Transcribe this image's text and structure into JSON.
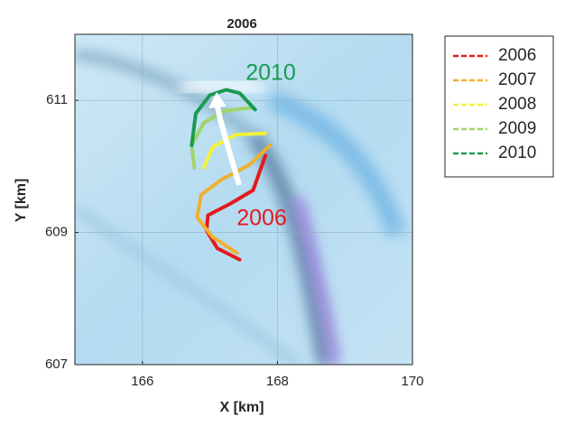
{
  "chart_data": {
    "type": "line",
    "title": "2006",
    "xlabel": "X [km]",
    "ylabel": "Y [km]",
    "xlim": [
      165,
      170
    ],
    "ylim": [
      607,
      612
    ],
    "xticks": [
      166,
      168,
      170
    ],
    "yticks": [
      607,
      609,
      611
    ],
    "grid": true,
    "legend": "outside right",
    "series": [
      {
        "name": "2006",
        "color": "#e41a1c",
        "x": [
          167.44,
          167.11,
          166.95,
          166.97,
          167.31,
          167.64,
          167.82
        ],
        "values": [
          608.59,
          608.76,
          609.03,
          609.26,
          609.44,
          609.64,
          610.16
        ]
      },
      {
        "name": "2007",
        "color": "#f0b030",
        "x": [
          167.4,
          167.04,
          166.81,
          166.87,
          167.17,
          167.58,
          167.89
        ],
        "values": [
          608.69,
          608.93,
          609.23,
          609.57,
          609.8,
          610.02,
          610.32
        ]
      },
      {
        "name": "2008",
        "color": "#f2f23c",
        "x": [
          166.91,
          167.04,
          167.38,
          167.82
        ],
        "values": [
          609.98,
          610.29,
          610.48,
          610.5
        ]
      },
      {
        "name": "2009",
        "color": "#9fd46a",
        "x": [
          166.77,
          166.73,
          166.91,
          167.21,
          167.62
        ],
        "values": [
          609.98,
          610.32,
          610.66,
          610.84,
          610.89
        ]
      },
      {
        "name": "2010",
        "color": "#1a9a50",
        "x": [
          166.73,
          166.79,
          167.0,
          167.24,
          167.44,
          167.67
        ],
        "values": [
          610.32,
          610.8,
          611.08,
          611.16,
          611.11,
          610.86
        ]
      }
    ],
    "annotations": [
      {
        "text": "2010",
        "color": "#1a9a50"
      },
      {
        "text": "2006",
        "color": "#e41a1c"
      }
    ]
  }
}
